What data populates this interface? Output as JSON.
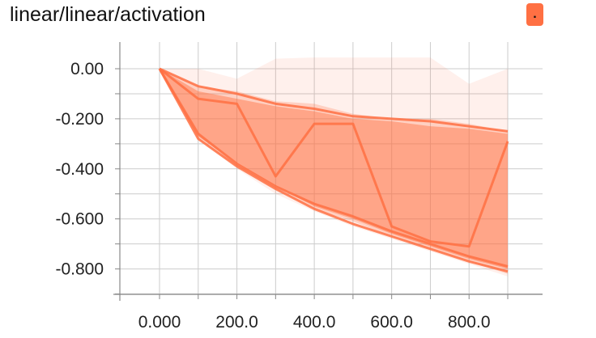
{
  "header": {
    "title": "linear/linear/activation",
    "button_label": ".",
    "button_color": "#ff7043"
  },
  "chart_data": {
    "type": "area",
    "title": "linear/linear/activation",
    "xlabel": "",
    "ylabel": "",
    "x": [
      0,
      100,
      200,
      300,
      400,
      500,
      600,
      700,
      800,
      900
    ],
    "xlim": [
      -100,
      1000
    ],
    "ylim": [
      -0.9,
      0.1
    ],
    "xticks": [
      "0.000",
      "200.0",
      "400.0",
      "600.0",
      "800.0"
    ],
    "xtick_values": [
      0,
      200,
      400,
      600,
      800
    ],
    "yticks": [
      "0.00",
      "-0.200",
      "-0.400",
      "-0.600",
      "-0.800"
    ],
    "ytick_values": [
      0,
      -0.2,
      -0.4,
      -0.6,
      -0.8
    ],
    "grid": true,
    "color": "#ff7043",
    "bands": [
      {
        "upper": [
          0,
          0,
          -0.04,
          0.04,
          0.045,
          0.045,
          0.045,
          0.045,
          -0.06,
          0.0
        ],
        "lower": [
          0,
          -0.28,
          -0.4,
          -0.5,
          -0.57,
          -0.63,
          -0.68,
          -0.73,
          -0.78,
          -0.83
        ],
        "opacity": 0.1
      },
      {
        "upper": [
          0,
          -0.07,
          -0.09,
          -0.13,
          -0.14,
          -0.18,
          -0.2,
          -0.2,
          -0.22,
          -0.25
        ],
        "lower": [
          0,
          -0.28,
          -0.39,
          -0.48,
          -0.56,
          -0.61,
          -0.67,
          -0.72,
          -0.77,
          -0.82
        ],
        "opacity": 0.25
      },
      {
        "upper": [
          0,
          -0.09,
          -0.12,
          -0.15,
          -0.17,
          -0.2,
          -0.21,
          -0.23,
          -0.24,
          -0.26
        ],
        "lower": [
          0,
          -0.27,
          -0.38,
          -0.47,
          -0.55,
          -0.6,
          -0.66,
          -0.71,
          -0.76,
          -0.8
        ],
        "opacity": 0.45
      }
    ],
    "series": [
      {
        "values": [
          0,
          -0.07,
          -0.1,
          -0.14,
          -0.16,
          -0.19,
          -0.2,
          -0.21,
          -0.23,
          -0.25
        ]
      },
      {
        "values": [
          0,
          -0.12,
          -0.14,
          -0.43,
          -0.22,
          -0.22,
          -0.63,
          -0.69,
          -0.71,
          -0.29
        ]
      },
      {
        "values": [
          0,
          -0.26,
          -0.38,
          -0.47,
          -0.54,
          -0.59,
          -0.65,
          -0.7,
          -0.75,
          -0.79
        ]
      },
      {
        "values": [
          0,
          -0.28,
          -0.39,
          -0.48,
          -0.56,
          -0.62,
          -0.67,
          -0.72,
          -0.77,
          -0.81
        ]
      }
    ]
  }
}
